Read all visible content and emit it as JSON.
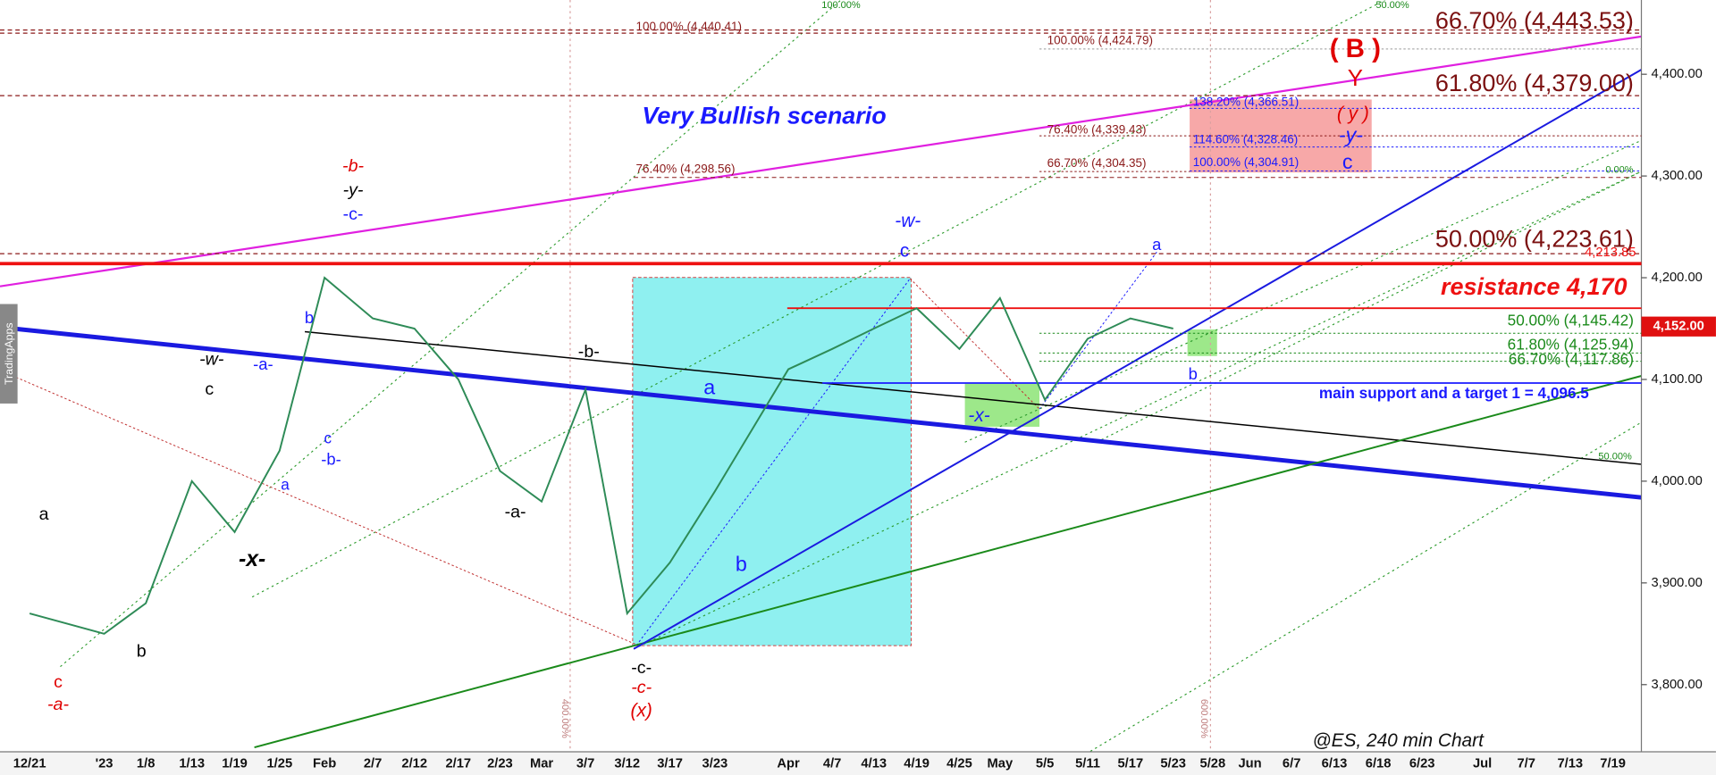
{
  "chart_data": {
    "type": "line",
    "title": "Very Bullish scenario",
    "watermark": "@ES, 240 min Chart",
    "source": "TradingApps",
    "categories": [
      "12/21",
      "'23",
      "1/8",
      "1/13",
      "1/19",
      "1/25",
      "Feb",
      "2/7",
      "2/12",
      "2/17",
      "2/23",
      "Mar",
      "3/7",
      "3/12",
      "3/17",
      "3/23",
      "Apr",
      "4/7",
      "4/13",
      "4/19",
      "4/25",
      "May",
      "5/5",
      "5/11",
      "5/17",
      "5/23",
      "5/28",
      "Jun",
      "6/7",
      "6/13",
      "6/18",
      "6/23",
      "Jul",
      "7/7",
      "7/13",
      "7/19"
    ],
    "values": [
      3870,
      3850,
      3880,
      4000,
      3950,
      4030,
      4200,
      4160,
      4150,
      4100,
      4010,
      3980,
      4090,
      3870,
      3920,
      3990,
      4110,
      4130,
      4150,
      4170,
      4130,
      4180,
      4080,
      4140,
      4160,
      4150,
      null,
      null,
      null,
      null,
      null,
      null,
      null,
      null,
      null,
      null
    ],
    "color": "#2e8b57",
    "ylim": [
      3734,
      4473
    ],
    "yticks": [
      {
        "value": 3800,
        "label": "3,800.00"
      },
      {
        "value": 3900,
        "label": "3,900.00"
      },
      {
        "value": 4000,
        "label": "4,000.00"
      },
      {
        "value": 4100,
        "label": "4,100.00"
      },
      {
        "value": 4200,
        "label": "4,200.00"
      },
      {
        "value": 4300,
        "label": "4,300.00"
      },
      {
        "value": 4400,
        "label": "4,400.00"
      }
    ],
    "last_price": {
      "value": 4152,
      "label": "4,152.00"
    },
    "levels": [
      {
        "value": 4443.53,
        "label": "66.70% (4,443.53)"
      },
      {
        "value": 4440.41,
        "label": "100.00% (4,440.41)"
      },
      {
        "value": 4424.79,
        "label": "100.00% (4,424.79)"
      },
      {
        "value": 4379.0,
        "label": "61.80% (4,379.00)"
      },
      {
        "value": 4366.51,
        "label": "138.20% (4,366.51)"
      },
      {
        "value": 4339.43,
        "label": "76.40% (4,339.43)"
      },
      {
        "value": 4328.46,
        "label": "114.60% (4,328.46)"
      },
      {
        "value": 4304.91,
        "label": "100.00% (4,304.91)"
      },
      {
        "value": 4304.35,
        "label": "66.70% (4,304.35)"
      },
      {
        "value": 4298.56,
        "label": "76.40% (4,298.56)"
      },
      {
        "value": 4223.61,
        "label": "50.00% (4,223.61)"
      },
      {
        "value": 4213.85,
        "label": "4,213.85"
      },
      {
        "value": 4170,
        "label": "resistance 4,170"
      },
      {
        "value": 4145.42,
        "label": "50.00% (4,145.42)"
      },
      {
        "value": 4125.94,
        "label": "61.80% (4,125.94)"
      },
      {
        "value": 4117.86,
        "label": "66.70% (4,117.86)"
      },
      {
        "value": 4096.5,
        "label": "main support and a target 1 = 4,096.5"
      }
    ],
    "annotations": [
      "a",
      "c",
      "-a-",
      "b",
      "c",
      "-w-",
      "-x-",
      "-a-",
      "a",
      "b",
      "c",
      "-b-",
      "-b-",
      "-y-",
      "-c-",
      "-a-",
      "-b-",
      "-c-",
      "-c-",
      "(x)",
      "a",
      "b",
      "-w-",
      "c",
      "-x-",
      "a",
      "b",
      "( B )",
      "Y",
      "( y )",
      "-y-",
      "c"
    ],
    "percent_marks": [
      "100.00%",
      "50.00%",
      "0.00%",
      "50.00%",
      "400.00%",
      "600.00%"
    ]
  }
}
